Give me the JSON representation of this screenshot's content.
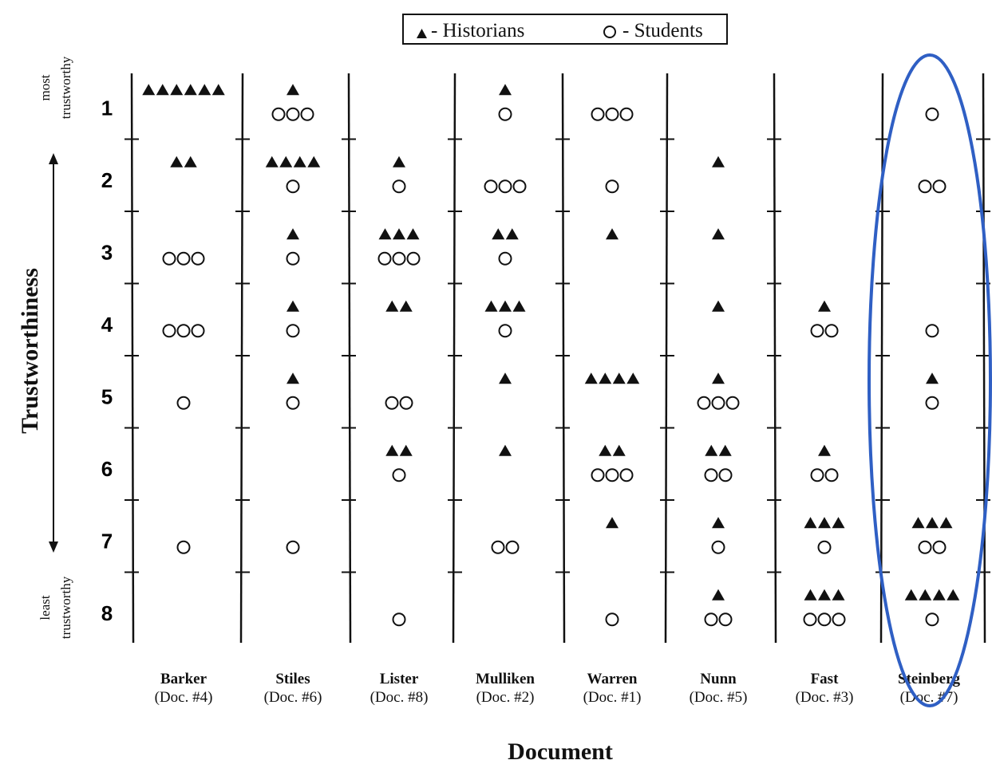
{
  "chart_data": {
    "type": "scatter",
    "legend": {
      "placement": "top-center",
      "entries": [
        {
          "name": "- Historians",
          "marker": "filled-triangle"
        },
        {
          "name": "- Students",
          "marker": "open-circle"
        }
      ]
    },
    "xlabel": "Document",
    "ylabel": "Trustworthiness",
    "ylabel_top": [
      "most",
      "trustworthy"
    ],
    "ylabel_bottom": [
      "least",
      "trustworthy"
    ],
    "ranks": [
      "1",
      "2",
      "3",
      "4",
      "5",
      "6",
      "7",
      "8"
    ],
    "documents": [
      {
        "name": "Barker",
        "doc": "(Doc. #4)",
        "historians": [
          6,
          2,
          0,
          0,
          0,
          0,
          0,
          0
        ],
        "students": [
          0,
          0,
          3,
          3,
          1,
          0,
          1,
          0
        ]
      },
      {
        "name": "Stiles",
        "doc": "(Doc. #6)",
        "historians": [
          1,
          4,
          1,
          1,
          1,
          0,
          0,
          0
        ],
        "students": [
          3,
          1,
          1,
          1,
          1,
          0,
          1,
          0
        ]
      },
      {
        "name": "Lister",
        "doc": "(Doc. #8)",
        "historians": [
          0,
          1,
          3,
          2,
          0,
          2,
          0,
          0
        ],
        "students": [
          0,
          1,
          3,
          0,
          2,
          1,
          0,
          1
        ]
      },
      {
        "name": "Mulliken",
        "doc": "(Doc. #2)",
        "historians": [
          1,
          0,
          2,
          3,
          1,
          1,
          0,
          0
        ],
        "students": [
          1,
          3,
          1,
          1,
          0,
          0,
          2,
          0
        ]
      },
      {
        "name": "Warren",
        "doc": "(Doc. #1)",
        "historians": [
          0,
          0,
          1,
          0,
          4,
          2,
          1,
          0
        ],
        "students": [
          3,
          1,
          0,
          0,
          0,
          3,
          0,
          1
        ]
      },
      {
        "name": "Nunn",
        "doc": "(Doc. #5)",
        "historians": [
          0,
          1,
          1,
          1,
          1,
          2,
          1,
          1
        ],
        "students": [
          0,
          0,
          0,
          0,
          3,
          2,
          1,
          2
        ]
      },
      {
        "name": "Fast",
        "doc": "(Doc. #3)",
        "historians": [
          0,
          0,
          0,
          1,
          0,
          1,
          3,
          3
        ],
        "students": [
          0,
          0,
          0,
          2,
          0,
          2,
          1,
          3
        ]
      },
      {
        "name": "Steinberg",
        "doc": "(Doc. #7)",
        "historians": [
          0,
          0,
          0,
          0,
          1,
          0,
          3,
          4
        ],
        "students": [
          1,
          2,
          0,
          1,
          1,
          0,
          2,
          1
        ]
      }
    ],
    "highlight": {
      "document": "Steinberg",
      "shape": "ellipse",
      "color": "#2f5fc4"
    },
    "grid": false
  }
}
